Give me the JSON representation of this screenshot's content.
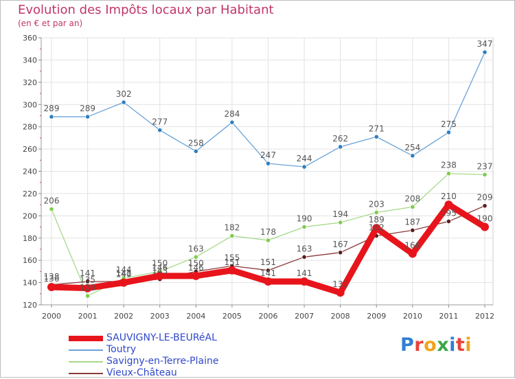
{
  "header": {
    "title": "Evolution des Impôts locaux par Habitant",
    "subtitle": "(en € et par an)"
  },
  "logo": {
    "text": "Proxiti",
    "letters": [
      {
        "ch": "P",
        "color": "#2f7fd3"
      },
      {
        "ch": "r",
        "color": "#e8433b"
      },
      {
        "ch": "o",
        "color": "#f2a31c"
      },
      {
        "ch": "x",
        "color": "#39a845"
      },
      {
        "ch": "i",
        "color": "#2f7fd3"
      },
      {
        "ch": "t",
        "color": "#e8433b"
      },
      {
        "ch": "i",
        "color": "#f2a31c"
      }
    ]
  },
  "chart_data": {
    "type": "line",
    "title": "Evolution des Impôts locaux par Habitant",
    "subtitle": "(en € et par an)",
    "xlabel": "",
    "ylabel": "",
    "x": [
      "2000",
      "2001",
      "2002",
      "2003",
      "2004",
      "2005",
      "2006",
      "2007",
      "2008",
      "2009",
      "2010",
      "2011",
      "2012"
    ],
    "ylim": [
      120,
      360
    ],
    "yticks": [
      120,
      140,
      160,
      180,
      200,
      220,
      240,
      260,
      280,
      300,
      320,
      340,
      360
    ],
    "grid": true,
    "legend_position": "bottom-left",
    "series": [
      {
        "name": "SAUVIGNY-LE-BEURéAL",
        "color": "#e8141b",
        "thick": true,
        "values": [
          136,
          135,
          140,
          146,
          146,
          151,
          141,
          141,
          131,
          189,
          166,
          210,
          190
        ],
        "labels": [
          "136",
          "135",
          "140",
          "146",
          "146",
          "151",
          "141",
          "141",
          "131",
          "189",
          "166",
          "210",
          "190"
        ]
      },
      {
        "name": "Toutry",
        "color": "#6aa2d8",
        "marker": "#2f7fbf",
        "values": [
          289,
          289,
          302,
          277,
          258,
          284,
          247,
          244,
          262,
          271,
          254,
          275,
          347
        ],
        "labels": [
          "289",
          "289",
          "302",
          "277",
          "258",
          "284",
          "247",
          "244",
          "262",
          "271",
          "254",
          "275",
          "347"
        ]
      },
      {
        "name": "Savigny-en-Terre-Plaine",
        "color": "#a6d98a",
        "marker": "#7fcc4c",
        "values": [
          206,
          128,
          144,
          150,
          163,
          182,
          178,
          190,
          194,
          203,
          208,
          238,
          237
        ],
        "labels": [
          "206",
          "128",
          "144",
          "150",
          "163",
          "182",
          "178",
          "190",
          "194",
          "203",
          "208",
          "238",
          "237"
        ]
      },
      {
        "name": "Vieux-Château",
        "color": "#8a3a3a",
        "marker": "#5a1e1e",
        "values": [
          138,
          141,
          141,
          143,
          150,
          155,
          151,
          163,
          167,
          182,
          187,
          195,
          209
        ],
        "labels": [
          "138",
          "141",
          "141",
          "143",
          "150",
          "155",
          "151",
          "163",
          "167",
          "182",
          "187",
          "195",
          "209"
        ]
      }
    ]
  }
}
